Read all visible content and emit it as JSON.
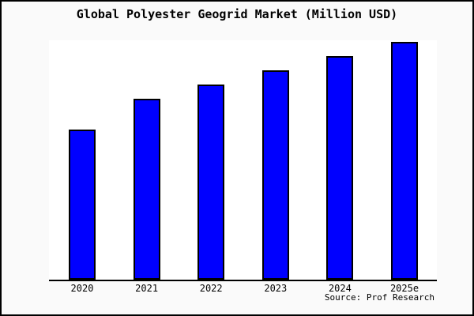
{
  "chart_data": {
    "type": "bar",
    "title": "Global Polyester Geogrid Market (Million USD)",
    "categories": [
      "2020",
      "2021",
      "2022",
      "2023",
      "2024",
      "2025e"
    ],
    "values": [
      63,
      76,
      82,
      88,
      94,
      100
    ],
    "values_note": "No y-axis, gridlines or data labels are shown in the chart; values are relative bar heights as a percentage of the tallest bar (2025e = 100).",
    "xlabel": "",
    "ylabel": "",
    "ylim": null,
    "grid": false,
    "legend": null,
    "bar_color": "#0000FF",
    "bar_border_color": "#000000",
    "plot_bg": "#FFFFFF",
    "page_bg": "#FAFAFA",
    "axis_line_color": "#000000",
    "text_color": "#000000"
  },
  "footer": {
    "source": "Source: Prof Research"
  }
}
